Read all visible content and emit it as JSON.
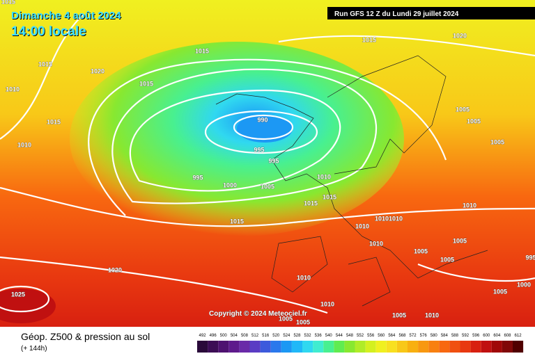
{
  "header": {
    "date": "Dimanche 4 août 2024",
    "time": "14:00 locale",
    "run": "Run GFS 12 Z du Lundi 29 juillet 2024"
  },
  "footer": {
    "title": "Géop. Z500 & pression au sol",
    "lead": "(+ 144h)",
    "copyright": "Copyright © 2024 Meteociel.fr"
  },
  "scale": {
    "labels": [
      492,
      496,
      500,
      504,
      508,
      512,
      516,
      520,
      524,
      528,
      532,
      536,
      540,
      544,
      548,
      552,
      556,
      560,
      564,
      568,
      572,
      576,
      580,
      584,
      588,
      592,
      596,
      600,
      604,
      608,
      612
    ],
    "colors": [
      "#2a0a3a",
      "#3c0d55",
      "#4e1270",
      "#5e1a8c",
      "#6a2aa8",
      "#5a3cc4",
      "#3c5adc",
      "#2a78ec",
      "#1c98f4",
      "#20b8f8",
      "#30d8f0",
      "#40ecd0",
      "#48f090",
      "#60ec50",
      "#88e830",
      "#b0ec28",
      "#d4f020",
      "#f0f020",
      "#f8e020",
      "#f8c818",
      "#f8b010",
      "#f89810",
      "#f88010",
      "#f86810",
      "#f05010",
      "#e83810",
      "#d82010",
      "#c01010",
      "#a00808",
      "#800808",
      "#500000"
    ]
  },
  "isobars": [
    1015,
    1015,
    1020,
    1015,
    1020,
    1015,
    1010,
    1015,
    1010,
    990,
    995,
    995,
    995,
    1000,
    1005,
    1010,
    1015,
    1015,
    1015,
    1015,
    1010,
    1010,
    1010,
    1005,
    1005,
    1005,
    1010,
    1010,
    1005,
    1005,
    1005,
    1010,
    1020,
    1025,
    1010,
    1005,
    1005,
    1005,
    1010,
    1005,
    1000,
    995
  ]
}
